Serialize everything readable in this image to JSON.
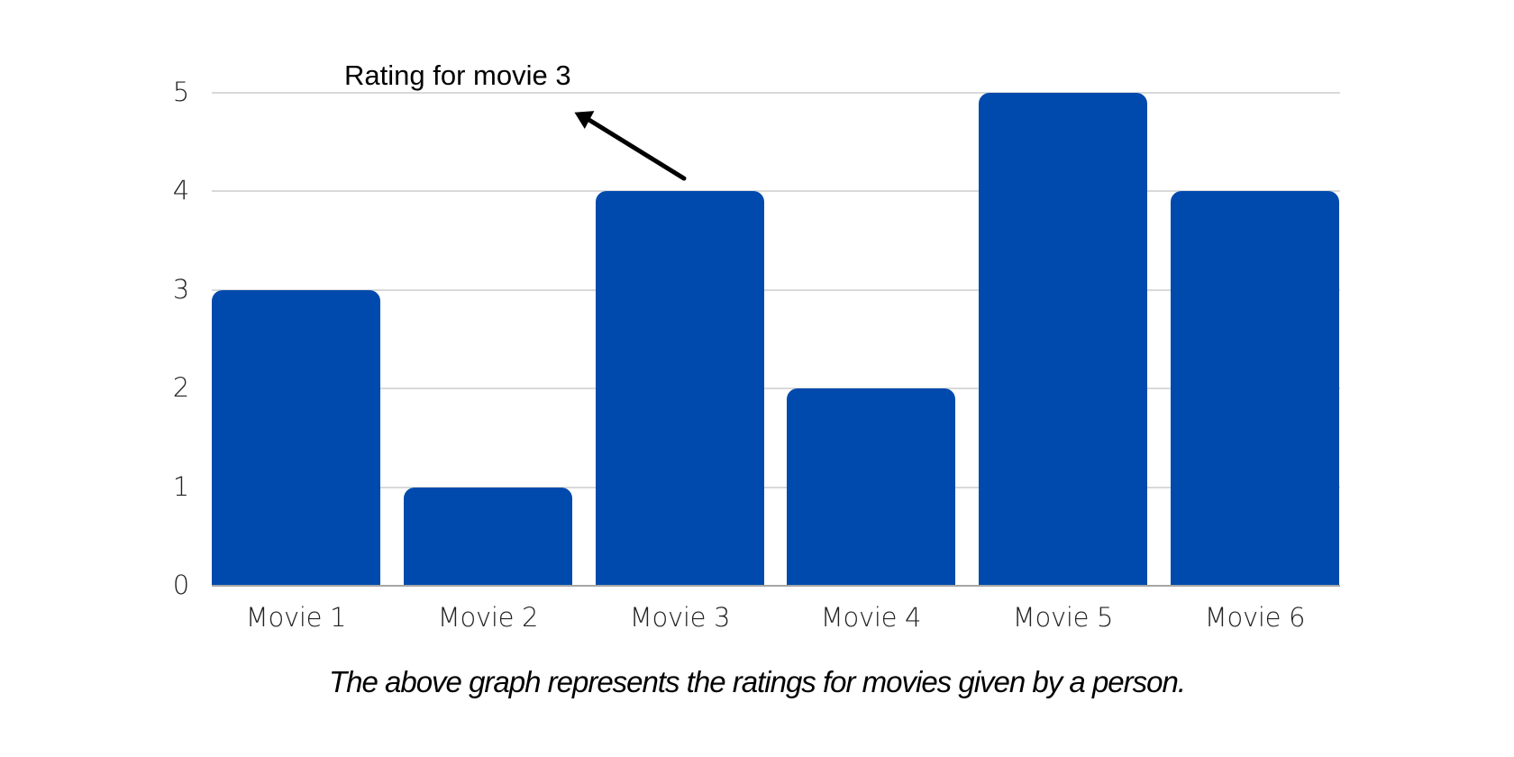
{
  "chart_data": {
    "type": "bar",
    "title": "",
    "xlabel": "",
    "ylabel": "",
    "categories": [
      "Movie 1",
      "Movie 2",
      "Movie 3",
      "Movie 4",
      "Movie 5",
      "Movie 6"
    ],
    "values": [
      3,
      1,
      4,
      2,
      5,
      4
    ],
    "ylim": [
      0,
      5
    ],
    "yticks": [
      "0",
      "1",
      "2",
      "3",
      "4",
      "5"
    ],
    "grid": true,
    "legend": null,
    "bar_color": "#004AAD",
    "annotations": [
      {
        "text": "Rating for movie 3",
        "target": "Movie 3",
        "type": "arrow"
      }
    ],
    "caption": "The above graph represents the ratings for movies given by a person."
  },
  "annotation": {
    "text": "Rating for movie 3"
  },
  "caption": "The above graph represents the ratings for movies given by a person.",
  "colors": {
    "bar": "#004AAD",
    "grid": "#d9d9d9",
    "axis": "#a6a6a6",
    "arrow": "#000000"
  }
}
